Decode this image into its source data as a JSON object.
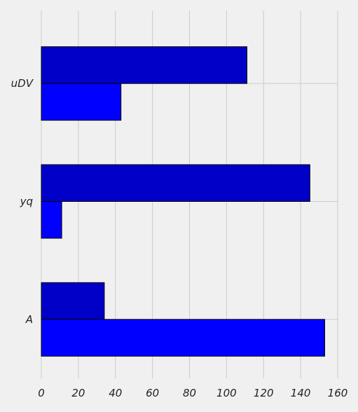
{
  "chart_data": {
    "type": "bar",
    "orientation": "horizontal",
    "categories": [
      "uDV",
      "yq",
      "A"
    ],
    "series": [
      {
        "values": [
          111,
          145,
          34
        ],
        "color": "#0000c8"
      },
      {
        "values": [
          43,
          11,
          153
        ],
        "color": "#0000ff"
      }
    ],
    "x_ticks": [
      "0",
      "20",
      "40",
      "60",
      "80",
      "100",
      "120",
      "140",
      "160"
    ],
    "xlim": [
      0,
      160
    ],
    "grid": true,
    "title": "",
    "xlabel": "",
    "ylabel": "",
    "background_color": "#f0f0f0",
    "grid_color": "#cbcbcb",
    "edge_color": "#000000"
  }
}
